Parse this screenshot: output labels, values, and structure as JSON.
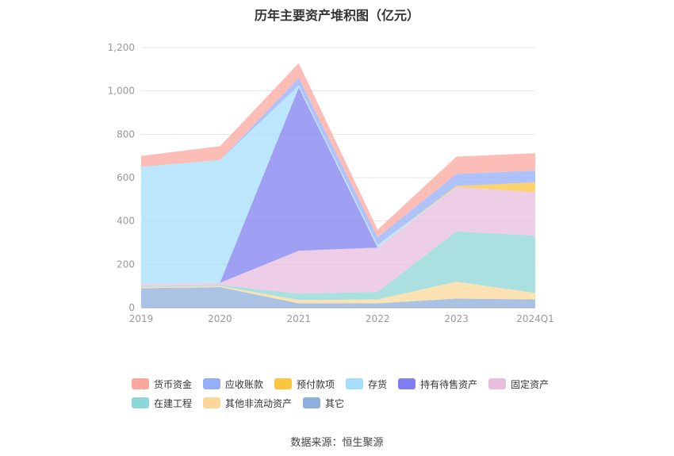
{
  "chart_data": {
    "type": "area",
    "stacked": true,
    "title": "历年主要资产堆积图（亿元）",
    "categories": [
      "2019",
      "2020",
      "2021",
      "2022",
      "2023",
      "2024Q1"
    ],
    "ylim": [
      0,
      1200
    ],
    "yticks": [
      "0",
      "200",
      "400",
      "600",
      "800",
      "1,000",
      "1,200"
    ],
    "grid": true,
    "legend_position": "bottom",
    "series": [
      {
        "name": "其它",
        "color": "#8eaedb",
        "values": [
          90,
          95,
          20,
          20,
          42,
          38
        ]
      },
      {
        "name": "其他非流动资产",
        "color": "#fbd89a",
        "values": [
          5,
          5,
          15,
          18,
          78,
          30
        ]
      },
      {
        "name": "在建工程",
        "color": "#8dd7d6",
        "values": [
          5,
          5,
          30,
          35,
          232,
          265
        ]
      },
      {
        "name": "固定资产",
        "color": "#e8bedd",
        "values": [
          10,
          10,
          198,
          204,
          205,
          200
        ]
      },
      {
        "name": "持有待售资产",
        "color": "#7f7ff0",
        "values": [
          0,
          0,
          752,
          0,
          0,
          0
        ]
      },
      {
        "name": "存货",
        "color": "#a6defa",
        "values": [
          540,
          566,
          10,
          13,
          0,
          0
        ]
      },
      {
        "name": "预付款项",
        "color": "#fbc63e",
        "values": [
          0,
          0,
          0,
          0,
          5,
          45
        ]
      },
      {
        "name": "应收账款",
        "color": "#95aef8",
        "values": [
          0,
          0,
          35,
          35,
          55,
          55
        ]
      },
      {
        "name": "货币资金",
        "color": "#fba79e",
        "values": [
          50,
          64,
          68,
          35,
          80,
          80
        ]
      }
    ],
    "legend_order": [
      "货币资金",
      "应收账款",
      "预付款项",
      "存货",
      "持有待售资产",
      "固定资产",
      "在建工程",
      "其他非流动资产",
      "其它"
    ]
  },
  "source": "数据来源：恒生聚源"
}
